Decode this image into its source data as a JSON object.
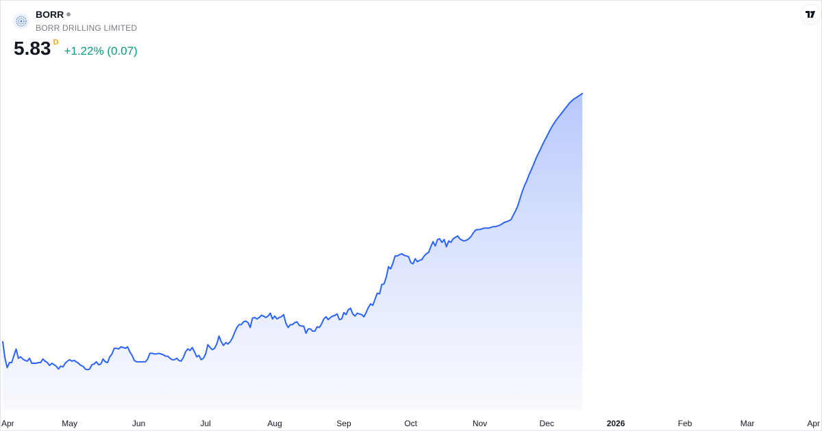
{
  "symbol": {
    "ticker": "BORR",
    "company": "BORR DRILLING LIMITED",
    "price": "5.83",
    "interval": "D",
    "change": "+1.22% (0.07)",
    "change_color": "#089981",
    "logo_icon": "borr-logo-icon",
    "badge_icon": "tradingview-logo-icon",
    "badge_text": "TV"
  },
  "colors": {
    "line": "#2962ff",
    "area_top": "#a9bdfb",
    "area_bottom": "#f4f6fe"
  },
  "chart_data": {
    "type": "area",
    "title": "",
    "xlabel": "",
    "ylabel": "",
    "grid": false,
    "x_ticks": [
      "Apr",
      "May",
      "Jun",
      "Jul",
      "Aug",
      "Sep",
      "Oct",
      "Nov",
      "Dec",
      "2026",
      "Feb",
      "Mar",
      "Apr"
    ],
    "x_tick_bold": [
      false,
      false,
      false,
      false,
      false,
      false,
      false,
      false,
      false,
      true,
      false,
      false,
      false
    ],
    "x_tick_days": [
      0,
      30,
      61,
      91,
      122,
      153,
      183,
      214,
      244,
      275,
      306,
      334,
      365
    ],
    "ylim": [
      1.4,
      6.2
    ],
    "series": [
      {
        "name": "",
        "points": [
          [
            0,
            2.35
          ],
          [
            1,
            2.12
          ],
          [
            2,
            1.99
          ],
          [
            3,
            2.06
          ],
          [
            4,
            2.06
          ],
          [
            6,
            2.25
          ],
          [
            7,
            2.12
          ],
          [
            8,
            2.14
          ],
          [
            9,
            2.11
          ],
          [
            10,
            2.09
          ],
          [
            11,
            2.08
          ],
          [
            12,
            2.12
          ],
          [
            13,
            2.05
          ],
          [
            14,
            2.05
          ],
          [
            15,
            2.05
          ],
          [
            16,
            2.06
          ],
          [
            17,
            2.06
          ],
          [
            18,
            2.11
          ],
          [
            19,
            2.08
          ],
          [
            20,
            2.06
          ],
          [
            21,
            2.02
          ],
          [
            22,
            2.05
          ],
          [
            23,
            2.03
          ],
          [
            24,
            2.01
          ],
          [
            25,
            1.97
          ],
          [
            26,
            2.01
          ],
          [
            27,
            2.0
          ],
          [
            28,
            2.05
          ],
          [
            29,
            2.08
          ],
          [
            30,
            2.1
          ],
          [
            31,
            2.08
          ],
          [
            32,
            2.09
          ],
          [
            33,
            2.07
          ],
          [
            34,
            2.05
          ],
          [
            35,
            2.02
          ],
          [
            36,
            2.01
          ],
          [
            37,
            1.97
          ],
          [
            38,
            1.96
          ],
          [
            39,
            1.97
          ],
          [
            40,
            2.03
          ],
          [
            41,
            2.04
          ],
          [
            42,
            2.07
          ],
          [
            43,
            2.03
          ],
          [
            44,
            2.04
          ],
          [
            45,
            2.11
          ],
          [
            46,
            2.07
          ],
          [
            47,
            2.06
          ],
          [
            48,
            2.14
          ],
          [
            49,
            2.18
          ],
          [
            50,
            2.26
          ],
          [
            51,
            2.26
          ],
          [
            52,
            2.25
          ],
          [
            53,
            2.28
          ],
          [
            54,
            2.27
          ],
          [
            55,
            2.26
          ],
          [
            56,
            2.28
          ],
          [
            57,
            2.21
          ],
          [
            58,
            2.16
          ],
          [
            59,
            2.09
          ],
          [
            60,
            2.07
          ],
          [
            62,
            2.07
          ],
          [
            64,
            2.07
          ],
          [
            65,
            2.11
          ],
          [
            66,
            2.19
          ],
          [
            67,
            2.19
          ],
          [
            68,
            2.18
          ],
          [
            69,
            2.18
          ],
          [
            70,
            2.19
          ],
          [
            71,
            2.18
          ],
          [
            72,
            2.17
          ],
          [
            73,
            2.15
          ],
          [
            74,
            2.15
          ],
          [
            75,
            2.12
          ],
          [
            76,
            2.1
          ],
          [
            77,
            2.1
          ],
          [
            78,
            2.12
          ],
          [
            79,
            2.09
          ],
          [
            80,
            2.08
          ],
          [
            81,
            2.13
          ],
          [
            82,
            2.21
          ],
          [
            83,
            2.25
          ],
          [
            84,
            2.23
          ],
          [
            85,
            2.27
          ],
          [
            86,
            2.21
          ],
          [
            87,
            2.14
          ],
          [
            88,
            2.16
          ],
          [
            89,
            2.1
          ],
          [
            90,
            2.12
          ],
          [
            91,
            2.18
          ],
          [
            92,
            2.31
          ],
          [
            93,
            2.27
          ],
          [
            94,
            2.24
          ],
          [
            95,
            2.26
          ],
          [
            96,
            2.32
          ],
          [
            97,
            2.43
          ],
          [
            98,
            2.35
          ],
          [
            99,
            2.3
          ],
          [
            100,
            2.34
          ],
          [
            101,
            2.32
          ],
          [
            102,
            2.35
          ],
          [
            103,
            2.4
          ],
          [
            104,
            2.48
          ],
          [
            105,
            2.55
          ],
          [
            106,
            2.59
          ],
          [
            107,
            2.59
          ],
          [
            108,
            2.63
          ],
          [
            109,
            2.64
          ],
          [
            110,
            2.62
          ],
          [
            111,
            2.55
          ],
          [
            112,
            2.68
          ],
          [
            113,
            2.69
          ],
          [
            114,
            2.67
          ],
          [
            115,
            2.69
          ],
          [
            116,
            2.72
          ],
          [
            117,
            2.71
          ],
          [
            118,
            2.69
          ],
          [
            119,
            2.71
          ],
          [
            120,
            2.75
          ],
          [
            121,
            2.67
          ],
          [
            122,
            2.71
          ],
          [
            123,
            2.67
          ],
          [
            124,
            2.69
          ],
          [
            125,
            2.7
          ],
          [
            126,
            2.73
          ],
          [
            127,
            2.61
          ],
          [
            128,
            2.55
          ],
          [
            129,
            2.59
          ],
          [
            130,
            2.59
          ],
          [
            131,
            2.62
          ],
          [
            132,
            2.63
          ],
          [
            133,
            2.58
          ],
          [
            134,
            2.57
          ],
          [
            135,
            2.57
          ],
          [
            136,
            2.47
          ],
          [
            137,
            2.53
          ],
          [
            138,
            2.53
          ],
          [
            139,
            2.5
          ],
          [
            140,
            2.5
          ],
          [
            141,
            2.56
          ],
          [
            142,
            2.55
          ],
          [
            143,
            2.6
          ],
          [
            144,
            2.67
          ],
          [
            145,
            2.7
          ],
          [
            146,
            2.66
          ],
          [
            147,
            2.69
          ],
          [
            148,
            2.71
          ],
          [
            149,
            2.72
          ],
          [
            150,
            2.74
          ],
          [
            151,
            2.66
          ],
          [
            152,
            2.67
          ],
          [
            153,
            2.76
          ],
          [
            154,
            2.73
          ],
          [
            155,
            2.8
          ],
          [
            156,
            2.82
          ],
          [
            157,
            2.74
          ],
          [
            158,
            2.71
          ],
          [
            159,
            2.75
          ],
          [
            160,
            2.74
          ],
          [
            161,
            2.73
          ],
          [
            162,
            2.7
          ],
          [
            163,
            2.76
          ],
          [
            164,
            2.83
          ],
          [
            165,
            2.88
          ],
          [
            166,
            2.86
          ],
          [
            167,
            2.95
          ],
          [
            168,
            3.03
          ],
          [
            169,
            3.02
          ],
          [
            170,
            3.15
          ],
          [
            171,
            3.16
          ],
          [
            172,
            3.25
          ],
          [
            173,
            3.4
          ],
          [
            174,
            3.37
          ],
          [
            175,
            3.45
          ],
          [
            176,
            3.55
          ],
          [
            177,
            3.55
          ],
          [
            178,
            3.57
          ],
          [
            179,
            3.58
          ],
          [
            180,
            3.56
          ],
          [
            181,
            3.55
          ],
          [
            182,
            3.54
          ],
          [
            183,
            3.46
          ],
          [
            184,
            3.44
          ],
          [
            185,
            3.51
          ],
          [
            186,
            3.47
          ],
          [
            187,
            3.49
          ],
          [
            188,
            3.5
          ],
          [
            189,
            3.55
          ],
          [
            190,
            3.58
          ],
          [
            191,
            3.6
          ],
          [
            192,
            3.68
          ],
          [
            193,
            3.75
          ],
          [
            194,
            3.69
          ],
          [
            195,
            3.78
          ],
          [
            196,
            3.79
          ],
          [
            197,
            3.74
          ],
          [
            198,
            3.78
          ],
          [
            199,
            3.68
          ],
          [
            200,
            3.76
          ],
          [
            201,
            3.74
          ],
          [
            202,
            3.79
          ],
          [
            203,
            3.81
          ],
          [
            204,
            3.83
          ],
          [
            205,
            3.79
          ],
          [
            206,
            3.77
          ],
          [
            207,
            3.76
          ],
          [
            208,
            3.77
          ],
          [
            209,
            3.79
          ],
          [
            210,
            3.82
          ],
          [
            211,
            3.87
          ],
          [
            212,
            3.91
          ],
          [
            213,
            3.92
          ],
          [
            214,
            3.92
          ],
          [
            215,
            3.93
          ],
          [
            216,
            3.94
          ],
          [
            217,
            3.94
          ],
          [
            218,
            3.94
          ],
          [
            219,
            3.95
          ],
          [
            220,
            3.96
          ],
          [
            221,
            3.96
          ],
          [
            222,
            3.97
          ],
          [
            223,
            3.98
          ],
          [
            224,
            4.0
          ],
          [
            225,
            4.02
          ],
          [
            226,
            4.03
          ],
          [
            227,
            4.04
          ],
          [
            228,
            4.06
          ],
          [
            229,
            4.12
          ],
          [
            230,
            4.18
          ],
          [
            231,
            4.25
          ],
          [
            232,
            4.35
          ],
          [
            233,
            4.45
          ],
          [
            234,
            4.53
          ],
          [
            235,
            4.6
          ],
          [
            236,
            4.68
          ],
          [
            237,
            4.75
          ],
          [
            238,
            4.82
          ],
          [
            239,
            4.9
          ],
          [
            240,
            4.97
          ],
          [
            241,
            5.03
          ],
          [
            242,
            5.1
          ],
          [
            243,
            5.16
          ],
          [
            244,
            5.22
          ],
          [
            245,
            5.28
          ],
          [
            246,
            5.34
          ],
          [
            247,
            5.39
          ],
          [
            248,
            5.44
          ],
          [
            249,
            5.48
          ],
          [
            250,
            5.52
          ],
          [
            251,
            5.56
          ],
          [
            252,
            5.6
          ],
          [
            253,
            5.64
          ],
          [
            254,
            5.68
          ],
          [
            255,
            5.71
          ],
          [
            256,
            5.74
          ],
          [
            257,
            5.76
          ],
          [
            258,
            5.78
          ],
          [
            259,
            5.8
          ],
          [
            260,
            5.82
          ]
        ]
      }
    ]
  }
}
